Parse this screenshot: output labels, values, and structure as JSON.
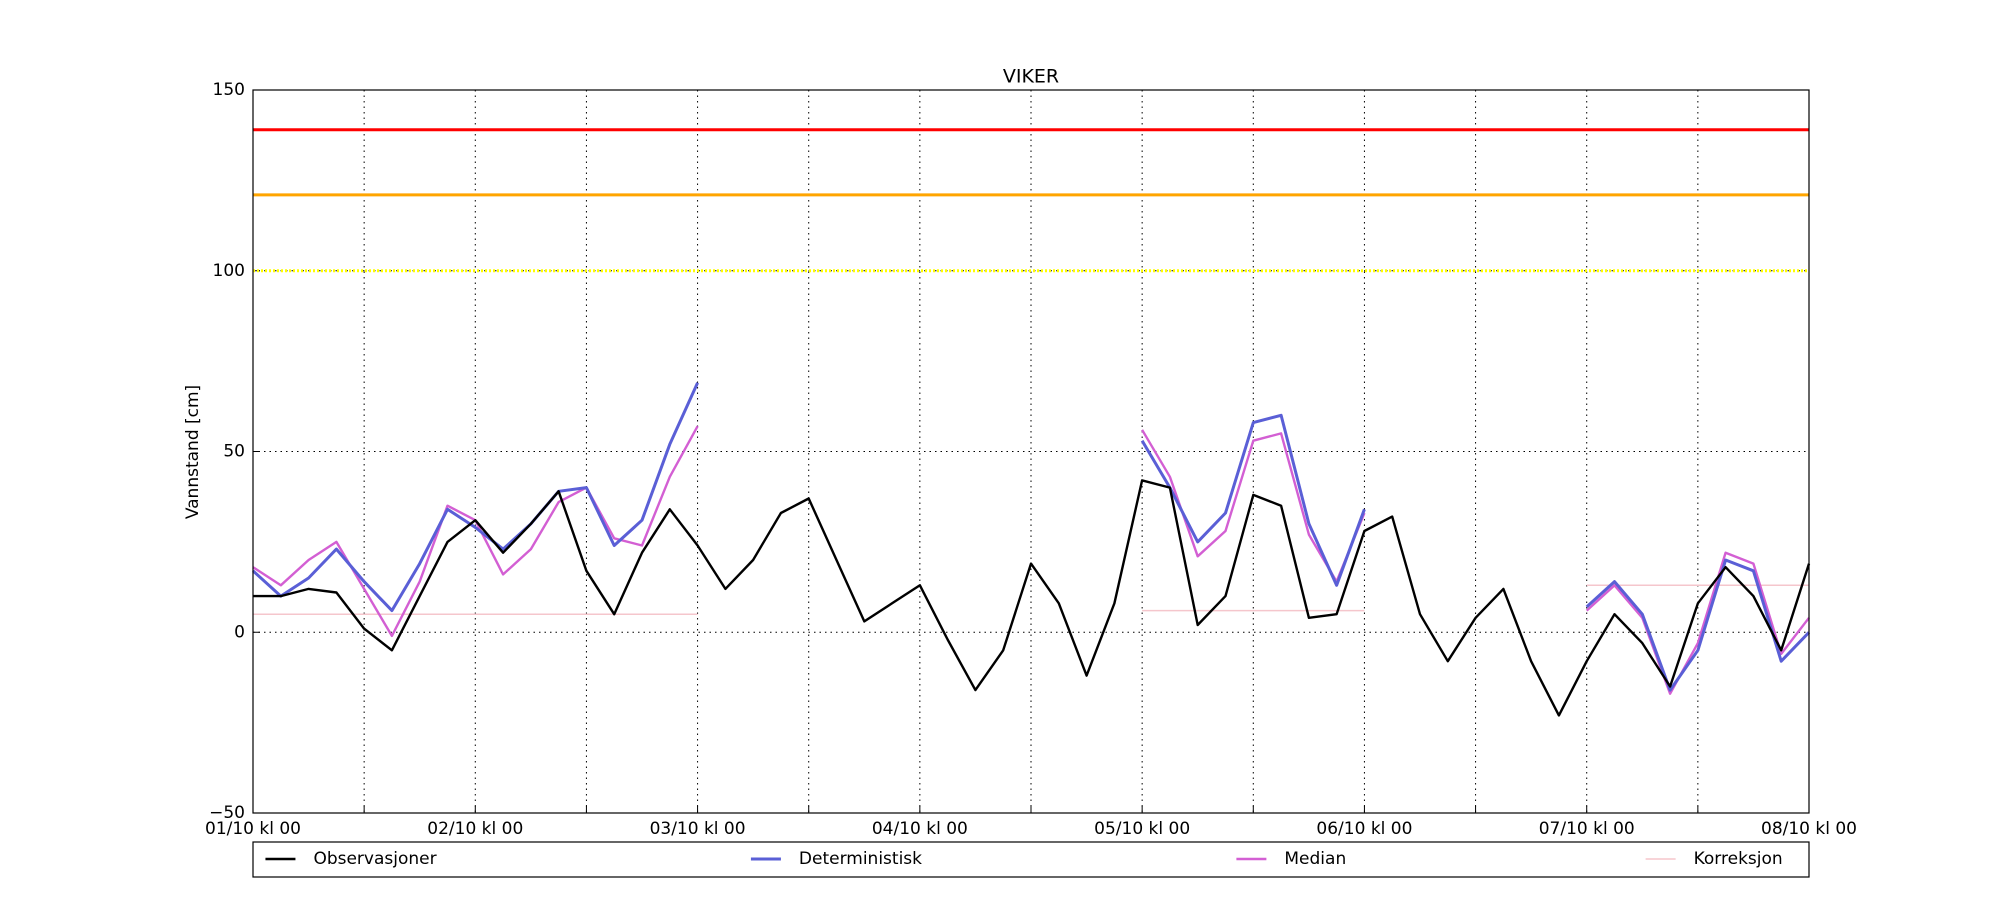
{
  "chart_data": {
    "type": "line",
    "title": "VIKER",
    "ylabel": "Vannstand [cm]",
    "x": [
      0,
      3,
      6,
      9,
      12,
      15,
      18,
      21,
      24,
      27,
      30,
      33,
      36,
      39,
      42,
      45,
      48,
      51,
      54,
      57,
      60,
      63,
      66,
      69,
      72,
      75,
      78,
      81,
      84,
      87,
      90,
      93,
      96,
      99,
      102,
      105,
      108,
      111,
      114,
      117,
      120,
      123,
      126,
      129,
      132,
      135,
      138,
      141,
      144,
      147,
      150,
      153,
      156,
      159,
      162,
      165,
      168
    ],
    "xlim": [
      0,
      168
    ],
    "xticks": [
      {
        "value": 0,
        "label": "01/10 kl 00"
      },
      {
        "value": 24,
        "label": "02/10 kl 00"
      },
      {
        "value": 48,
        "label": "03/10 kl 00"
      },
      {
        "value": 72,
        "label": "04/10 kl 00"
      },
      {
        "value": 96,
        "label": "05/10 kl 00"
      },
      {
        "value": 120,
        "label": "06/10 kl 00"
      },
      {
        "value": 144,
        "label": "07/10 kl 00"
      },
      {
        "value": 168,
        "label": "08/10 kl 00"
      }
    ],
    "xminorticks": [
      12,
      36,
      60,
      84,
      108,
      132,
      156
    ],
    "ylim": [
      -50,
      150
    ],
    "yticks": [
      {
        "value": -50,
        "label": "−50"
      },
      0,
      50,
      100,
      150
    ],
    "grid": true,
    "legend": "bottom",
    "hlines": [
      {
        "value": 139,
        "color": "#ff0000",
        "linestyle": "solid"
      },
      {
        "value": 121,
        "color": "#ffa500",
        "linestyle": "solid"
      },
      {
        "value": 100,
        "color": "#ffff00",
        "linestyle": "dotted"
      }
    ],
    "series": [
      {
        "name": "Observasjoner",
        "color": "#000000",
        "width": 2.4,
        "values": [
          10,
          10,
          12,
          11,
          1,
          -5,
          10,
          25,
          31,
          22,
          30,
          39,
          17,
          5,
          22,
          34,
          24,
          12,
          20,
          33,
          37,
          20,
          3,
          8,
          13,
          -2,
          -16,
          -5,
          19,
          8,
          -12,
          8,
          42,
          40,
          2,
          10,
          38,
          35,
          4,
          5,
          28,
          32,
          5,
          -8,
          4,
          12,
          -8,
          -23,
          -8,
          5,
          -3,
          -15,
          8,
          18,
          10,
          -5,
          19
        ]
      },
      {
        "name": "Deterministisk",
        "color": "#5a5fd6",
        "width": 3,
        "values": [
          17,
          10,
          15,
          23,
          14,
          6,
          19,
          34,
          29,
          23,
          30,
          39,
          40,
          24,
          31,
          52,
          69,
          null,
          null,
          null,
          null,
          null,
          null,
          null,
          null,
          null,
          null,
          null,
          null,
          null,
          null,
          null,
          53,
          40,
          25,
          33,
          58,
          60,
          30,
          13,
          34,
          null,
          null,
          null,
          null,
          null,
          null,
          null,
          7,
          14,
          5,
          -16,
          -5,
          20,
          17,
          -8,
          0
        ]
      },
      {
        "name": "Median",
        "color": "#d35fd3",
        "width": 2.4,
        "values": [
          18,
          13,
          20,
          25,
          12,
          -1,
          14,
          35,
          31,
          16,
          23,
          36,
          40,
          26,
          24,
          43,
          57,
          null,
          null,
          null,
          null,
          null,
          null,
          null,
          null,
          null,
          null,
          null,
          null,
          null,
          null,
          null,
          56,
          43,
          21,
          28,
          53,
          55,
          27,
          14,
          33,
          null,
          null,
          null,
          null,
          null,
          null,
          null,
          6,
          13,
          4,
          -17,
          -3,
          22,
          19,
          -6,
          4
        ]
      },
      {
        "name": "Korreksjon",
        "color": "#f5c6cc",
        "width": 1.5,
        "values": [
          5,
          5,
          5,
          5,
          5,
          5,
          5,
          5,
          5,
          5,
          5,
          5,
          5,
          5,
          5,
          5,
          5,
          null,
          null,
          null,
          null,
          null,
          null,
          null,
          null,
          null,
          null,
          null,
          null,
          null,
          null,
          null,
          6,
          6,
          6,
          6,
          6,
          6,
          6,
          6,
          6,
          null,
          null,
          null,
          null,
          null,
          null,
          null,
          13,
          13,
          13,
          13,
          13,
          13,
          13,
          13,
          13
        ]
      }
    ]
  }
}
